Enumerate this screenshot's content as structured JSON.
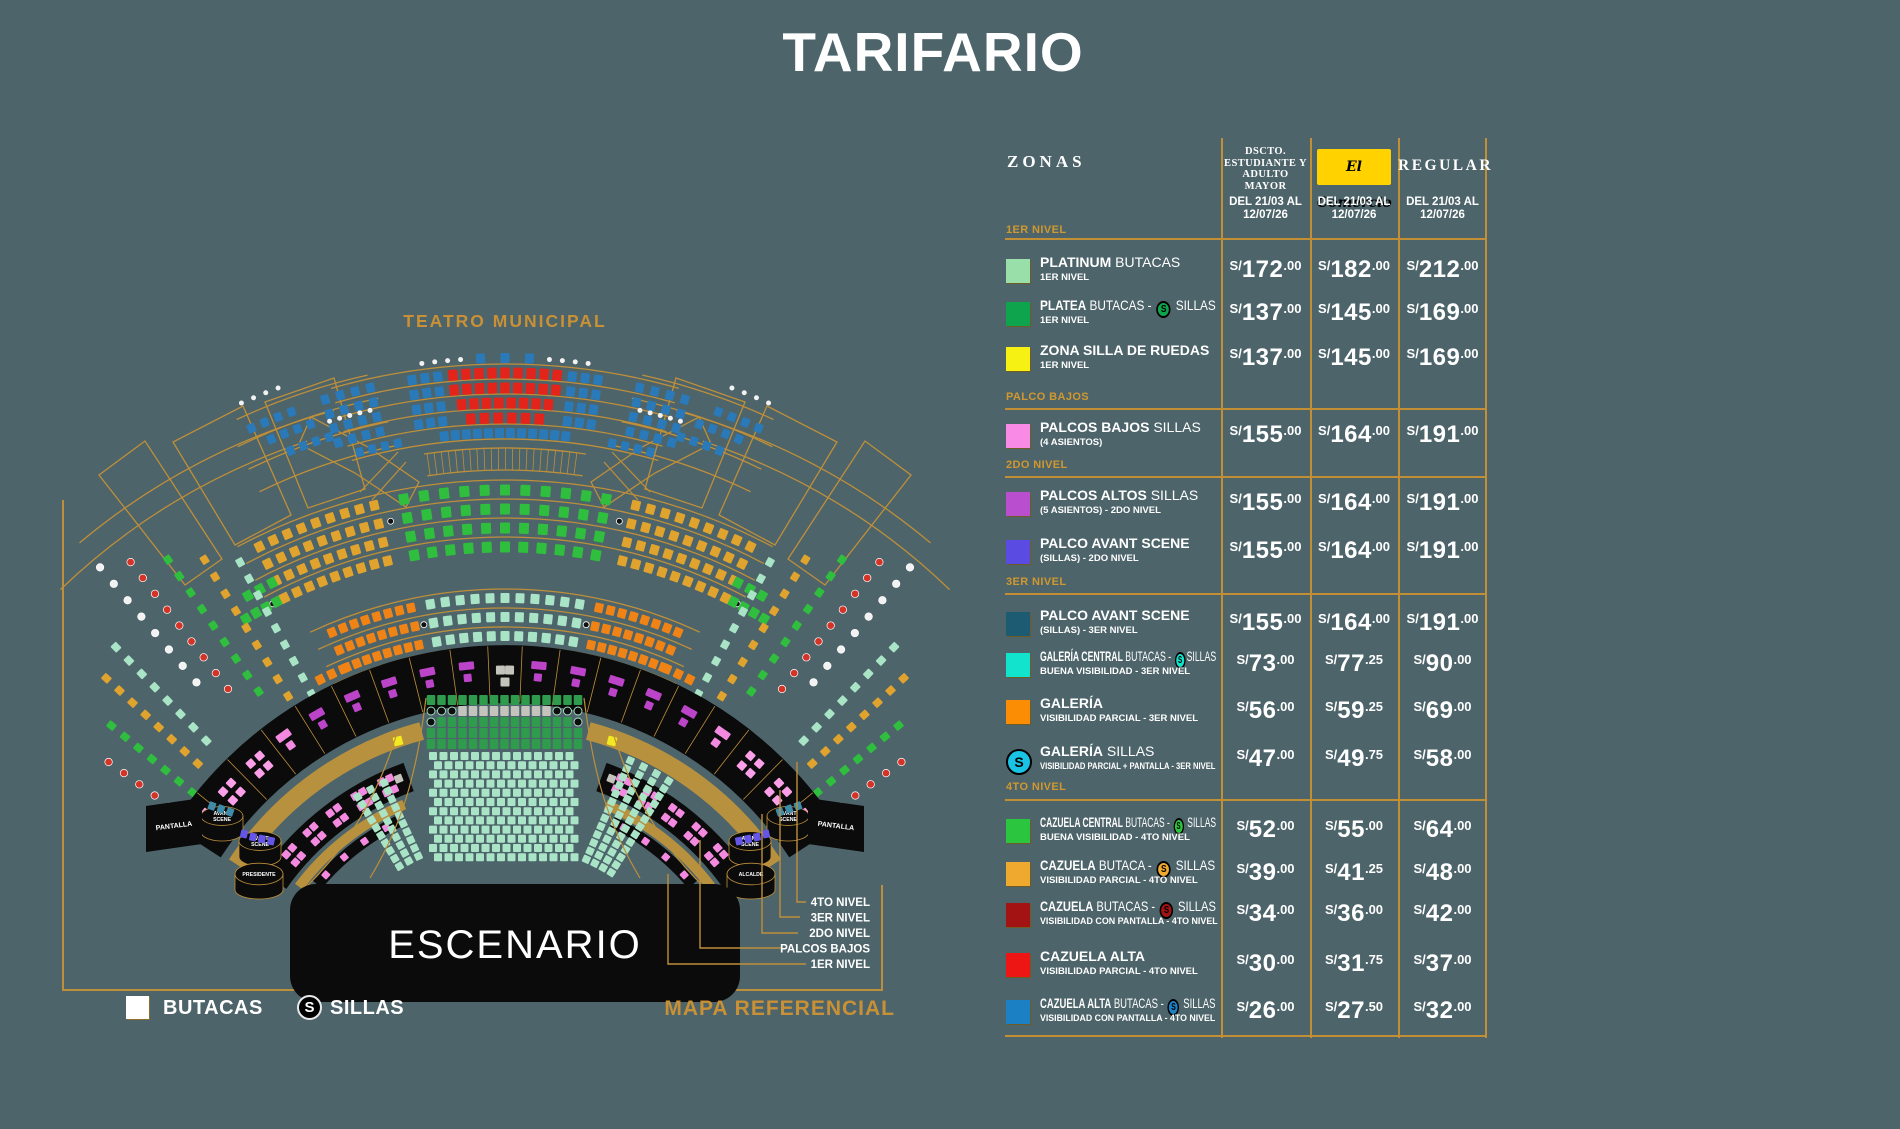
{
  "title": "TARIFARIO",
  "map": {
    "venue": "TEATRO MUNICIPAL",
    "stage": "ESCENARIO",
    "screen_left": "PANTALLA",
    "screen_right": "PANTALLA",
    "box_avant_scene": "AVANT SCENE",
    "box_presidente": "PRESIDENTE",
    "box_alcalde": "ALCALDE",
    "callouts": [
      "4TO NIVEL",
      "3ER NIVEL",
      "2DO NIVEL",
      "PALCOS BAJOS",
      "1ER NIVEL"
    ],
    "note": "MAPA REFERENCIAL",
    "legend": {
      "butacas": "BUTACAS",
      "sillas": "SILLAS",
      "sillas_symbol": "S"
    },
    "map_colors": {
      "gold": "#BE8F3A",
      "gold_fill": "#B8913E",
      "black": "#0B0B0B",
      "blue": "#2A79B8",
      "red": "#E3241B",
      "green": "#2FBE3E",
      "dark_green": "#2E9B4D",
      "amber": "#E0A32E",
      "mint": "#A9E4C6",
      "orange": "#F08316",
      "gray": "#C4C4BC",
      "magenta": "#BC44C8",
      "pink": "#F489E0",
      "light_pink": "#FB9FE8",
      "yellow": "#F2EA20",
      "violet": "#6656E8",
      "steel": "#3E8CA8",
      "white": "#F2F2F2"
    }
  },
  "table": {
    "zones_header": "ZONAS",
    "columns": [
      {
        "label": "DSCTO. ESTUDIANTE Y ADULTO MAYOR",
        "label_lines": [
          "DSCTO.",
          "ESTUDIANTE Y",
          "ADULTO MAYOR"
        ],
        "period1": "DEL 21/03 AL",
        "period2": "12/07/26"
      },
      {
        "label": "El Comercio",
        "logo_bg": "#FFD200",
        "period1": "DEL 21/03 AL",
        "period2": "12/07/26"
      },
      {
        "label": "REGULAR",
        "period1": "DEL 21/03 AL",
        "period2": "12/07/26"
      }
    ],
    "currency": "S/",
    "sections": [
      {
        "label": "1ER NIVEL",
        "rows": [
          {
            "b": "PLATINUM",
            "r1": " BUTACAS",
            "s": "",
            "r2": "",
            "sub": "1ER NIVEL",
            "sw": "#99DFA9",
            "dots": false,
            "p": [
              [
                "172",
                ".00"
              ],
              [
                "182",
                ".00"
              ],
              [
                "212",
                ".00"
              ]
            ]
          },
          {
            "b": "PLATEA",
            "r1": " BUTACAS - ",
            "s": "#0EA34D",
            "r2": " SILLAS",
            "sub": "1ER NIVEL",
            "sw": "#0EA34D",
            "dots": false,
            "p": [
              [
                "137",
                ".00"
              ],
              [
                "145",
                ".00"
              ],
              [
                "169",
                ".00"
              ]
            ]
          },
          {
            "b": "ZONA SILLA DE RUEDAS",
            "r1": "",
            "s": "",
            "r2": "",
            "sub": "1ER NIVEL",
            "sw": "#F7F013",
            "dots": false,
            "p": [
              [
                "137",
                ".00"
              ],
              [
                "145",
                ".00"
              ],
              [
                "169",
                ".00"
              ]
            ]
          }
        ]
      },
      {
        "label": "PALCO BAJOS",
        "rows": [
          {
            "b": "PALCOS BAJOS",
            "r1": " SILLAS",
            "s": "",
            "r2": "",
            "sub": "(4 ASIENTOS)",
            "sw": "#F98BE6",
            "dots": false,
            "p": [
              [
                "155",
                ".00"
              ],
              [
                "164",
                ".00"
              ],
              [
                "191",
                ".00"
              ]
            ]
          }
        ]
      },
      {
        "label": "2DO NIVEL",
        "rows": [
          {
            "b": "PALCOS ALTOS",
            "r1": " SILLAS",
            "s": "",
            "r2": "",
            "sub": "(5 ASIENTOS) - 2DO NIVEL",
            "sw": "#B94FCE",
            "dots": false,
            "p": [
              [
                "155",
                ".00"
              ],
              [
                "164",
                ".00"
              ],
              [
                "191",
                ".00"
              ]
            ]
          },
          {
            "b": "PALCO AVANT SCENE",
            "r1": "",
            "s": "",
            "r2": "",
            "sub": "(SILLAS) - 2DO NIVEL",
            "sw": "#5A4BE3",
            "dots": false,
            "p": [
              [
                "155",
                ".00"
              ],
              [
                "164",
                ".00"
              ],
              [
                "191",
                ".00"
              ]
            ]
          }
        ]
      },
      {
        "label": "3ER NIVEL",
        "rows": [
          {
            "b": "PALCO AVANT SCENE",
            "r1": "",
            "s": "",
            "r2": "",
            "sub": "(SILLAS) - 3ER NIVEL",
            "sw": "#1C5B72",
            "dots": false,
            "p": [
              [
                "155",
                ".00"
              ],
              [
                "164",
                ".00"
              ],
              [
                "191",
                ".00"
              ]
            ]
          },
          {
            "b": "GALERÍA CENTRAL",
            "r1": " BUTACAS - ",
            "s": "#12E3CC",
            "r2": "SILLAS",
            "sub": "BUENA VISIBILIDAD - 3ER NIVEL",
            "sw": "#12E3CC",
            "dots": false,
            "p": [
              [
                "73",
                ".00"
              ],
              [
                "77",
                ".25"
              ],
              [
                "90",
                ".00"
              ]
            ]
          },
          {
            "b": "GALERÍA",
            "r1": "",
            "s": "",
            "r2": "",
            "sub": "VISIBILIDAD PARCIAL  - 3ER NIVEL",
            "sw": "#FB8D04",
            "dots": false,
            "p": [
              [
                "56",
                ".00"
              ],
              [
                "59",
                ".25"
              ],
              [
                "69",
                ".00"
              ]
            ]
          },
          {
            "b": "GALERÍA",
            "r1": " SILLAS",
            "s": "",
            "r2": "",
            "sub": "VISIBILIDAD PARCIAL + PANTALLA  - 3ER NIVEL",
            "sw": "",
            "sw_icon": "#19C3E3",
            "dots": false,
            "p": [
              [
                "47",
                ".00"
              ],
              [
                "49",
                ".75"
              ],
              [
                "58",
                ".00"
              ]
            ]
          }
        ]
      },
      {
        "label": "4TO NIVEL",
        "rows": [
          {
            "b": "CAZUELA CENTRAL",
            "r1": " BUTACAS - ",
            "s": "#2BC53F",
            "r2": " SILLAS",
            "sub": "BUENA VISIBILIDAD - 4TO NIVEL",
            "sw": "#2BC53F",
            "dots": true,
            "p": [
              [
                "52",
                ".00"
              ],
              [
                "55",
                ".00"
              ],
              [
                "64",
                ".00"
              ]
            ]
          },
          {
            "b": "CAZUELA",
            "r1": " BUTACA - ",
            "s": "#EFA92F",
            "r2": " SILLAS",
            "sub": "VISIBILIDAD PARCIAL - 4TO NIVEL",
            "sw": "#EFA92F",
            "dots": true,
            "p": [
              [
                "39",
                ".00"
              ],
              [
                "41",
                ".25"
              ],
              [
                "48",
                ".00"
              ]
            ]
          },
          {
            "b": "CAZUELA",
            "r1": " BUTACAS - ",
            "s": "#A31313",
            "r2": " SILLAS",
            "sub": "VISIBILIDAD CON PANTALLA - 4TO NIVEL",
            "sw": "#A31313",
            "dots": true,
            "p": [
              [
                "34",
                ".00"
              ],
              [
                "36",
                ".00"
              ],
              [
                "42",
                ".00"
              ]
            ]
          },
          {
            "b": "CAZUELA ALTA",
            "r1": "",
            "s": "",
            "r2": "",
            "sub": "VISIBILIDAD  PARCIAL - 4TO NIVEL",
            "sw": "#EE1515",
            "dots": true,
            "p": [
              [
                "30",
                ".00"
              ],
              [
                "31",
                ".75"
              ],
              [
                "37",
                ".00"
              ]
            ]
          },
          {
            "b": "CAZUELA ALTA",
            "r1": " BUTACAS - ",
            "s": "#1B80C4",
            "r2": " SILLAS",
            "sub": "VISIBILIDAD  CON PANTALLA - 4TO NIVEL",
            "sw": "#1B80C4",
            "dots": false,
            "p": [
              [
                "26",
                ".00"
              ],
              [
                "27",
                ".50"
              ],
              [
                "32",
                ".00"
              ]
            ]
          }
        ]
      }
    ]
  }
}
